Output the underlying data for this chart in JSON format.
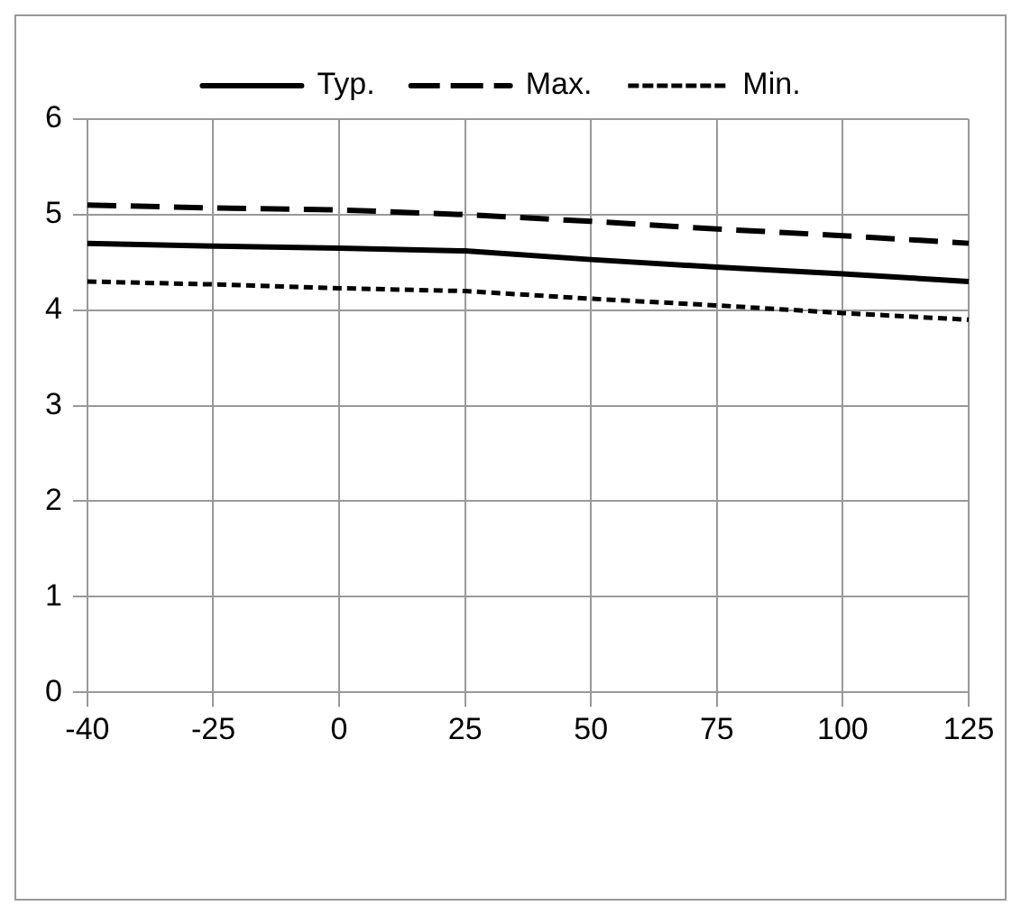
{
  "chart_data": {
    "type": "line",
    "categories": [
      "-40",
      "-25",
      "0",
      "25",
      "50",
      "75",
      "100",
      "125"
    ],
    "series": [
      {
        "name": "Typ.",
        "color": "#000000",
        "line_style": "solid",
        "values": [
          4.7,
          4.67,
          4.65,
          4.62,
          4.53,
          4.45,
          4.38,
          4.3
        ]
      },
      {
        "name": "Max.",
        "color": "#000000",
        "line_style": "dashed",
        "values": [
          5.1,
          5.07,
          5.05,
          5.0,
          4.93,
          4.85,
          4.78,
          4.7
        ]
      },
      {
        "name": "Min.",
        "color": "#000000",
        "line_style": "dotted",
        "values": [
          4.3,
          4.27,
          4.23,
          4.2,
          4.12,
          4.05,
          3.97,
          3.9
        ]
      }
    ],
    "ylim": [
      0,
      6
    ],
    "yticks": [
      0,
      1,
      2,
      3,
      4,
      5,
      6
    ],
    "grid": true,
    "legend": "top",
    "marker": "none"
  }
}
